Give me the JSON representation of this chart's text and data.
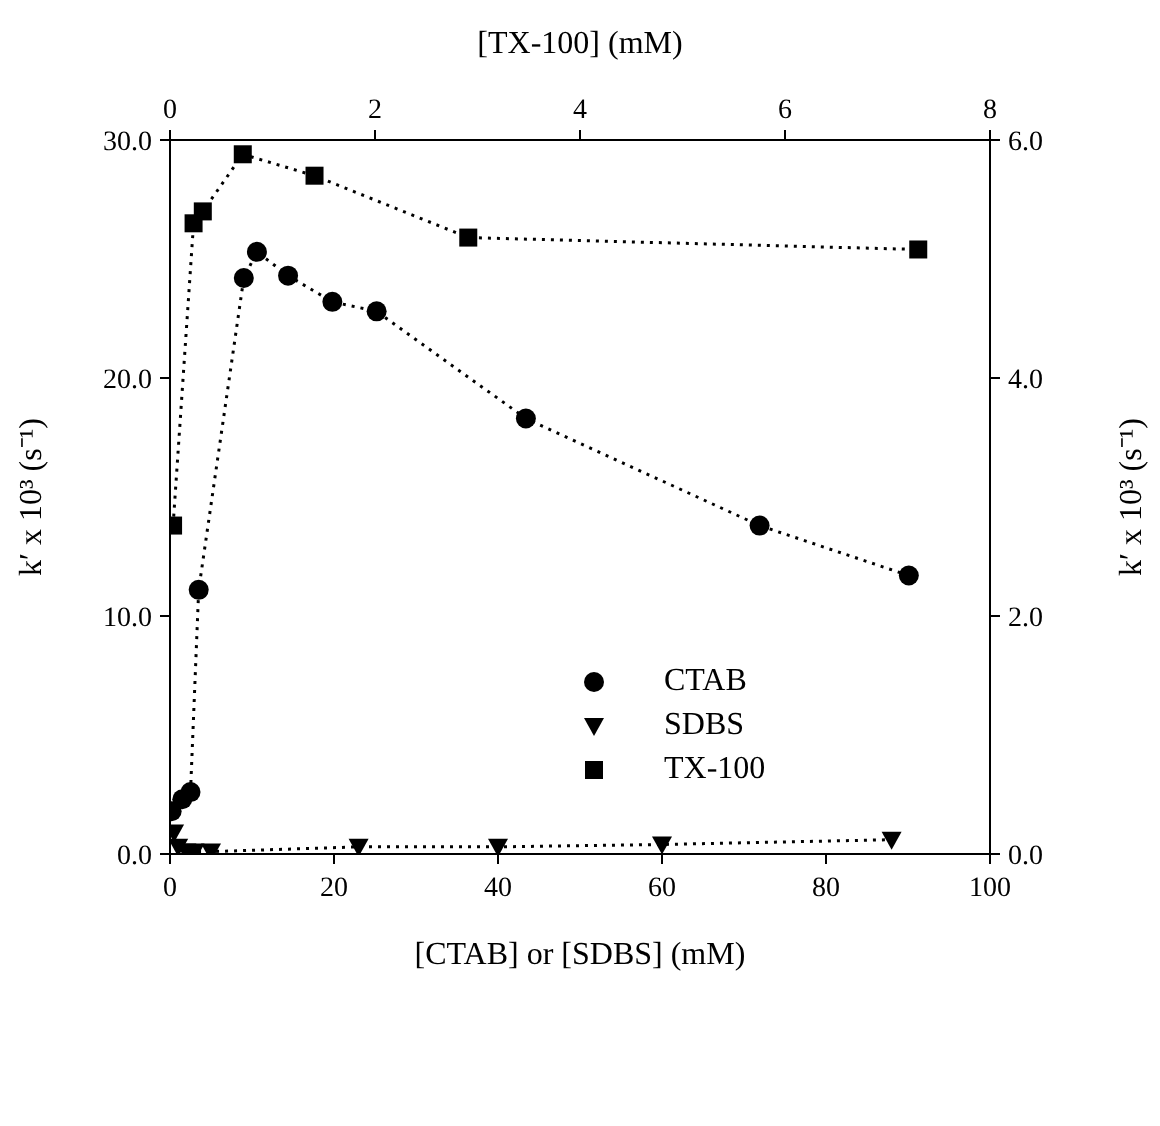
{
  "chart_data": {
    "type": "line",
    "xlabel": "[CTAB] or [SDBS] (mM)",
    "x2label": "[TX-100] (mM)",
    "ylabel": "k′ x 10³ (s⁻¹)",
    "y2label": "k′ x 10³ (s⁻¹)",
    "xlim": [
      0,
      100
    ],
    "xticks": [
      0,
      20,
      40,
      60,
      80,
      100
    ],
    "x2lim": [
      0,
      8
    ],
    "x2ticks": [
      0,
      2,
      4,
      6,
      8
    ],
    "ylim": [
      0,
      30
    ],
    "yticks": [
      {
        "value": 0,
        "label": "0.0"
      },
      {
        "value": 10,
        "label": "10.0"
      },
      {
        "value": 20,
        "label": "20.0"
      },
      {
        "value": 30,
        "label": "30.0"
      }
    ],
    "y2lim": [
      0,
      6
    ],
    "y2ticks": [
      {
        "value": 0,
        "label": "0.0"
      },
      {
        "value": 2,
        "label": "2.0"
      },
      {
        "value": 4,
        "label": "4.0"
      },
      {
        "value": 6,
        "label": "6.0"
      }
    ],
    "legend": "right",
    "line_style": "dotted",
    "series": [
      {
        "name": "CTAB",
        "color": "#000000",
        "marker": "circle",
        "x": [
          0.2,
          1.5,
          2.5,
          3.5,
          9.0,
          10.6,
          14.4,
          19.8,
          25.2,
          43.4,
          71.9,
          90.1
        ],
        "values": [
          1.8,
          2.3,
          2.6,
          11.1,
          24.2,
          25.3,
          24.3,
          23.2,
          22.8,
          18.3,
          13.8,
          11.7
        ]
      },
      {
        "name": "SDBS",
        "color": "#000000",
        "marker": "triangle",
        "x": [
          0.5,
          1,
          2,
          3,
          5,
          23,
          40,
          60,
          88
        ],
        "values": [
          0.9,
          0.3,
          0.1,
          0.1,
          0.1,
          0.3,
          0.3,
          0.4,
          0.6
        ]
      },
      {
        "name": "TX-100",
        "color": "#000000",
        "marker": "square",
        "axis": "x2",
        "x": [
          0.03,
          0.23,
          0.32,
          0.71,
          1.41,
          2.91,
          7.3
        ],
        "values": [
          13.8,
          26.5,
          27.0,
          29.4,
          28.5,
          25.9,
          25.4
        ]
      }
    ]
  }
}
